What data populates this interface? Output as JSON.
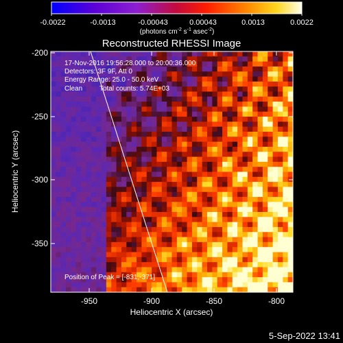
{
  "colorbar": {
    "ticks": [
      "-0.0022",
      "-0.0013",
      "-0.00043",
      "0.00043",
      "0.0013",
      "0.0022"
    ],
    "units_prefix": "(photons cm",
    "units_exp1": "-2",
    "units_mid": " s",
    "units_exp2": "-1",
    "units_mid2": " asec",
    "units_exp3": "-2",
    "units_suffix": ")"
  },
  "plot": {
    "title": "Reconstructed RHESSI Image",
    "annotations": {
      "time_range": "17-Nov-2016 19:56:28.000 to 20:00:36.000",
      "detectors": "Detectors: 3F 9F, Att 0",
      "energy": "Energy Range: 25.0 - 50.0 keV",
      "clean": "Clean",
      "counts": "Total counts: 5.74E+03",
      "peak": "Position of Peak = [-831,-371]"
    },
    "xlabel": "Heliocentric X (arcsec)",
    "ylabel": "Heliocentric Y (arcsec)",
    "xticks": [
      "-950",
      "-900",
      "-850",
      "-800"
    ],
    "yticks": [
      "-200",
      "-250",
      "-300",
      "-350"
    ]
  },
  "footer": {
    "date": "5-Sep-2022 13:41"
  },
  "chart_data": {
    "type": "heatmap",
    "title": "Reconstructed RHESSI Image",
    "xlabel": "Heliocentric X (arcsec)",
    "ylabel": "Heliocentric Y (arcsec)",
    "xlim": [
      -977,
      -788
    ],
    "ylim": [
      -388,
      -197
    ],
    "color_range": [
      -0.0022,
      0.0022
    ],
    "colorbar_ticks": [
      -0.0022,
      -0.0013,
      -0.00043,
      0.00043,
      0.0013,
      0.0022
    ],
    "peak": [
      -831,
      -371
    ],
    "limb_line": {
      "x1": -962,
      "y1": -197,
      "x2": -893,
      "y2": -388
    }
  }
}
